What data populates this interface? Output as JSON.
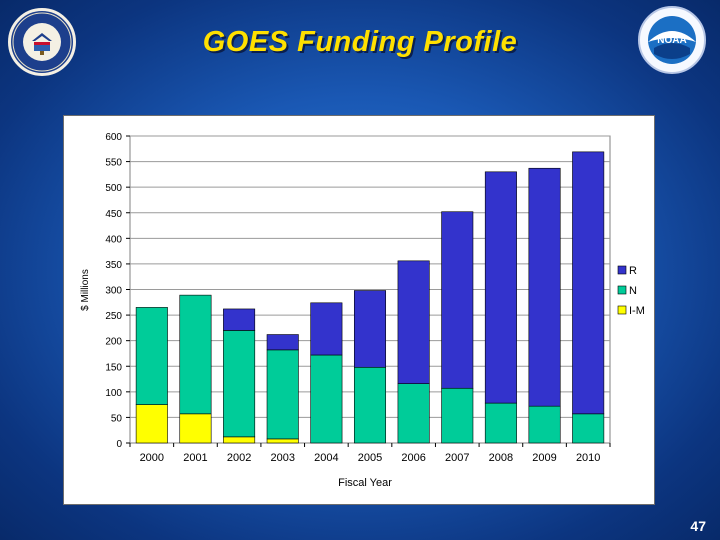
{
  "header": {
    "title": "GOES Funding Profile"
  },
  "logos": {
    "left": {
      "label": "DEPARTMENT OF COMMERCE · UNITED STATES OF AMERICA",
      "icon": "department-of-commerce-seal"
    },
    "right": {
      "label": "NOAA",
      "icon": "noaa-logo"
    }
  },
  "footer": {
    "page_number": "47"
  },
  "colors": {
    "R": "#3333cc",
    "N": "#00cc99",
    "I-M": "#ffff00",
    "title": "#ffe000"
  },
  "chart_data": {
    "type": "bar",
    "stacked": true,
    "title": "",
    "xlabel": "Fiscal Year",
    "ylabel": "$ Millions",
    "ylim": [
      0,
      600
    ],
    "yticks": [
      0,
      50,
      100,
      150,
      200,
      250,
      300,
      350,
      400,
      450,
      500,
      550,
      600
    ],
    "grid": true,
    "legend": "right",
    "categories": [
      "2000",
      "2001",
      "2002",
      "2003",
      "2004",
      "2005",
      "2006",
      "2007",
      "2008",
      "2009",
      "2010"
    ],
    "series": [
      {
        "name": "I-M",
        "values": [
          75,
          57,
          12,
          8,
          0,
          0,
          0,
          0,
          0,
          0,
          0
        ]
      },
      {
        "name": "N",
        "values": [
          190,
          232,
          208,
          174,
          172,
          148,
          116,
          107,
          78,
          72,
          57
        ]
      },
      {
        "name": "R",
        "values": [
          0,
          0,
          42,
          30,
          102,
          150,
          240,
          345,
          452,
          465,
          512
        ]
      }
    ]
  }
}
